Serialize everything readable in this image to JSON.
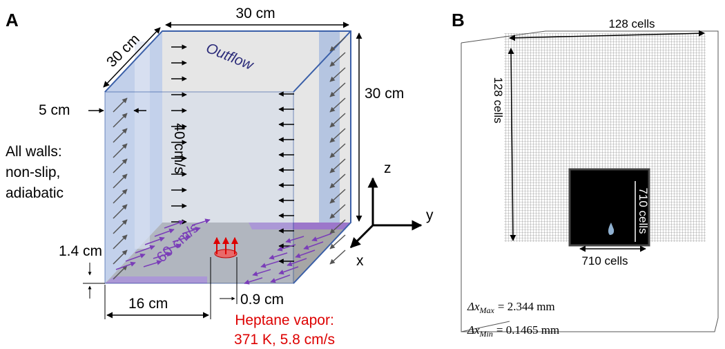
{
  "panel_a": {
    "label": "A",
    "dimensions": {
      "width": "30 cm",
      "depth": "30 cm",
      "height": "30 cm",
      "wall_gap": "5 cm",
      "inlet_height": "1.4 cm",
      "inlet_offset": "16 cm",
      "burner_diameter": "0.9 cm"
    },
    "outflow": "Outflow",
    "side_velocity": "40 cm/s",
    "floor_velocity": "60 cm/s",
    "walls": [
      "All walls:",
      "non-slip,",
      "adiabatic"
    ],
    "axes": {
      "z": "z",
      "y": "y",
      "x": "x"
    },
    "fuel": [
      "Heptane vapor:",
      "371 K, 5.8 cm/s"
    ]
  },
  "panel_b": {
    "label": "B",
    "grid": {
      "top": "128 cells",
      "side": "128 cells"
    },
    "refined": {
      "side": "710 cells",
      "bottom": "710 cells"
    },
    "spacing": [
      {
        "symbol": "Δx",
        "subscript": "Max",
        "value": "= 2.344 mm"
      },
      {
        "symbol": "Δx",
        "subscript": "Min",
        "value": "= 0.1465 mm"
      }
    ]
  }
}
